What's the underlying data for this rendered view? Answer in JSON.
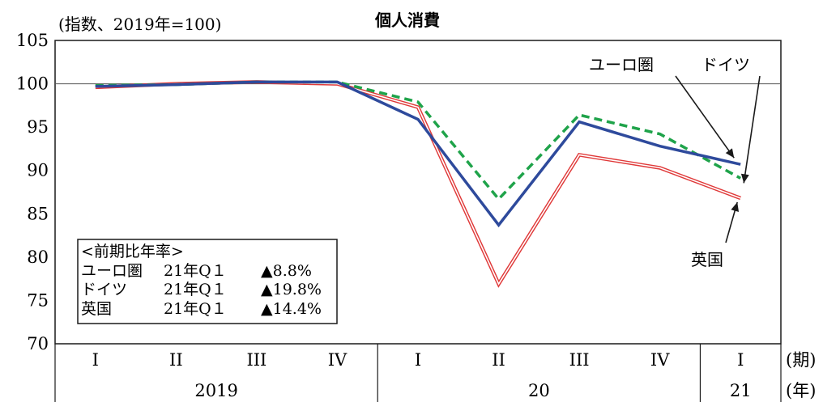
{
  "chart_data": {
    "type": "line",
    "title": "個人消費",
    "ylabel": "(指数、2019年=100)",
    "ylim": [
      70,
      105
    ],
    "yticks": [
      70,
      75,
      80,
      85,
      90,
      95,
      100,
      105
    ],
    "reference_line": 100,
    "categories": [
      "I",
      "II",
      "III",
      "IV",
      "I",
      "II",
      "III",
      "IV",
      "I"
    ],
    "years": [
      {
        "label": "2019",
        "span": 4
      },
      {
        "label": "20",
        "span": 4
      },
      {
        "label": "21",
        "span": 1
      }
    ],
    "quarter_axis_label": "(期)",
    "year_axis_label": "(年)",
    "series": [
      {
        "name": "ユーロ圏",
        "color": "#2e4a9c",
        "style": "solid",
        "values": [
          99.7,
          99.9,
          100.2,
          100.2,
          95.9,
          83.7,
          95.6,
          92.8,
          90.7
        ]
      },
      {
        "name": "ドイツ",
        "color": "#1fa34a",
        "style": "dashed",
        "values": [
          99.8,
          99.9,
          100.2,
          100.2,
          97.9,
          86.7,
          96.4,
          94.2,
          89.1
        ]
      },
      {
        "name": "英国",
        "color": "#e03a3a",
        "style": "double",
        "values": [
          99.6,
          100.0,
          100.2,
          100.0,
          97.3,
          76.9,
          91.8,
          90.3,
          86.8
        ]
      }
    ],
    "legend_box": {
      "header": "<前期比年率>",
      "rows": [
        {
          "name": "ユーロ圏",
          "period": "21年Q１",
          "value": "▲8.8%"
        },
        {
          "name": "ドイツ",
          "period": "21年Q１",
          "value": "▲19.8%"
        },
        {
          "name": "英国",
          "period": "21年Q１",
          "value": "▲14.4%"
        }
      ]
    }
  }
}
